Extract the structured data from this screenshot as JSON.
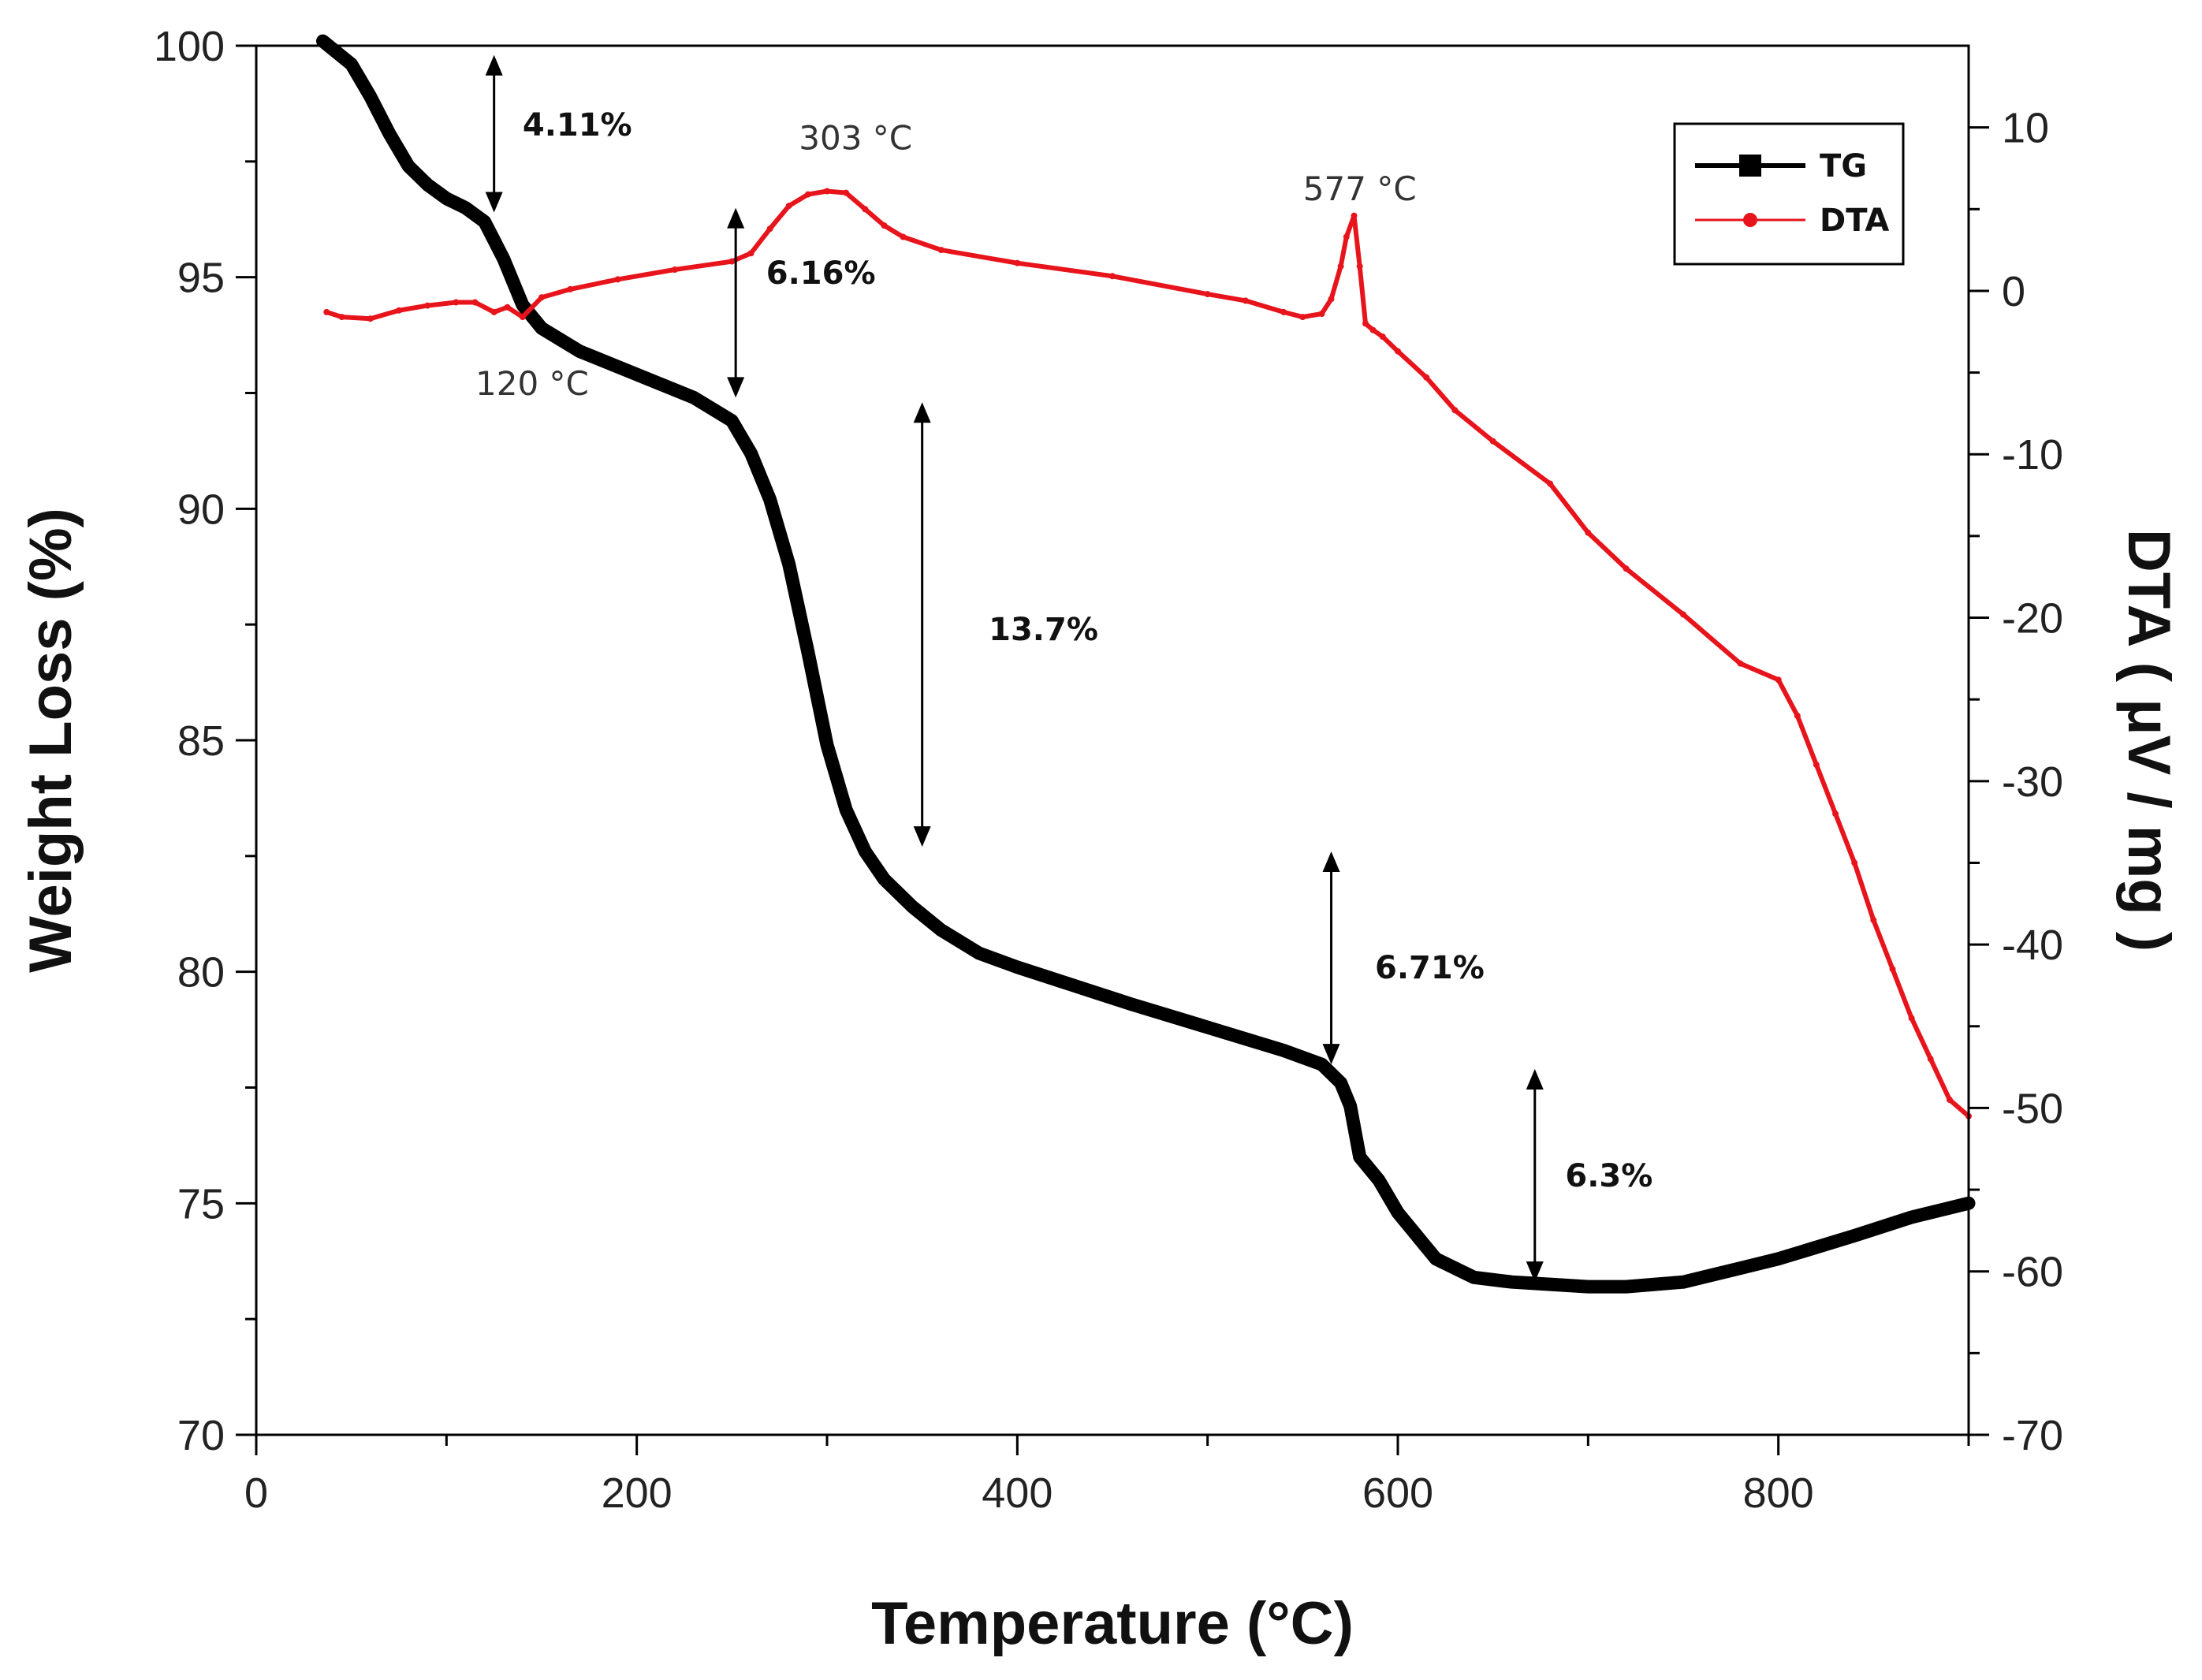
{
  "chart_data": {
    "type": "line",
    "title": "",
    "xlabel": "Temperature (°C)",
    "ylabel": "Weight Loss (%)",
    "y2label": "DTA  ( μV / mg )",
    "xlim": [
      0,
      900
    ],
    "ylim": [
      70,
      100
    ],
    "y2lim": [
      -70,
      15
    ],
    "x_ticks": [
      0,
      200,
      400,
      600,
      800
    ],
    "y_ticks": [
      70,
      75,
      80,
      85,
      90,
      95,
      100
    ],
    "y2_ticks": [
      -70,
      -60,
      -50,
      -40,
      -30,
      -20,
      -10,
      0,
      10
    ],
    "legend_position": "top-right",
    "series": [
      {
        "name": "TG",
        "axis": "left",
        "color": "#000000",
        "x": [
          35,
          50,
          60,
          70,
          80,
          90,
          100,
          110,
          120,
          130,
          140,
          150,
          170,
          200,
          230,
          250,
          260,
          270,
          280,
          290,
          300,
          310,
          320,
          330,
          345,
          360,
          380,
          400,
          430,
          460,
          500,
          540,
          560,
          570,
          575,
          580,
          590,
          600,
          620,
          640,
          660,
          680,
          700,
          720,
          750,
          780,
          800,
          840,
          870,
          900
        ],
        "values": [
          100.1,
          99.6,
          98.9,
          98.1,
          97.4,
          97.0,
          96.7,
          96.5,
          96.2,
          95.4,
          94.4,
          93.9,
          93.4,
          92.9,
          92.4,
          91.9,
          91.2,
          90.2,
          88.8,
          86.9,
          84.9,
          83.5,
          82.6,
          82.0,
          81.4,
          80.9,
          80.4,
          80.1,
          79.7,
          79.3,
          78.8,
          78.3,
          78.0,
          77.6,
          77.1,
          76.0,
          75.5,
          74.8,
          73.8,
          73.4,
          73.3,
          73.25,
          73.2,
          73.2,
          73.3,
          73.6,
          73.8,
          74.3,
          74.7,
          75.0
        ]
      },
      {
        "name": "DTA",
        "axis": "right",
        "color": "#e8141c",
        "x": [
          37,
          45,
          60,
          75,
          90,
          105,
          115,
          125,
          132,
          140,
          150,
          165,
          190,
          220,
          250,
          260,
          270,
          280,
          290,
          300,
          310,
          320,
          330,
          340,
          360,
          400,
          450,
          500,
          520,
          540,
          550,
          560,
          565,
          570,
          573,
          577,
          580,
          583,
          587,
          592,
          600,
          615,
          630,
          650,
          680,
          700,
          720,
          750,
          780,
          800,
          810,
          820,
          830,
          840,
          850,
          860,
          870,
          880,
          890,
          900
        ],
        "values": [
          -1.3,
          -1.6,
          -1.7,
          -1.2,
          -0.9,
          -0.7,
          -0.7,
          -1.3,
          -1.0,
          -1.6,
          -0.4,
          0.1,
          0.7,
          1.3,
          1.8,
          2.3,
          3.8,
          5.2,
          5.9,
          6.1,
          6.0,
          5.0,
          4.0,
          3.3,
          2.5,
          1.7,
          0.9,
          -0.2,
          -0.6,
          -1.3,
          -1.6,
          -1.4,
          -0.5,
          1.5,
          3.3,
          4.6,
          1.5,
          -2.0,
          -2.4,
          -2.8,
          -3.7,
          -5.3,
          -7.3,
          -9.2,
          -11.8,
          -14.8,
          -17.0,
          -19.8,
          -22.8,
          -23.8,
          -26.0,
          -29.0,
          -32.0,
          -35.0,
          -38.5,
          -41.5,
          -44.5,
          -47.0,
          -49.5,
          -50.5
        ]
      }
    ],
    "annotations": {
      "weight_losses": [
        {
          "label": "4.11%",
          "x": 125,
          "y_top": 99.8,
          "y_bottom": 96.4,
          "label_x": 140,
          "label_y": 98.3
        },
        {
          "label": "6.16%",
          "x": 252,
          "y_top": 96.5,
          "y_bottom": 92.4,
          "label_x": 268,
          "label_y": 95.1
        },
        {
          "label": "13.7%",
          "x": 350,
          "y_top": 92.3,
          "y_bottom": 82.7,
          "label_x": 385,
          "label_y": 87.4
        },
        {
          "label": "6.71%",
          "x": 565,
          "y_top": 82.6,
          "y_bottom": 78.0,
          "label_x": 588,
          "label_y": 80.1
        },
        {
          "label": "6.3%",
          "x": 672,
          "y_top": 77.9,
          "y_bottom": 73.3,
          "label_x": 688,
          "label_y": 75.6
        }
      ],
      "temperatures": [
        {
          "label": "120 °C",
          "x": 145,
          "y": 92.7
        },
        {
          "label": "303 °C",
          "x": 315,
          "y": 98.0
        },
        {
          "label": "577 °C",
          "x": 580,
          "y": 96.9
        }
      ]
    }
  }
}
